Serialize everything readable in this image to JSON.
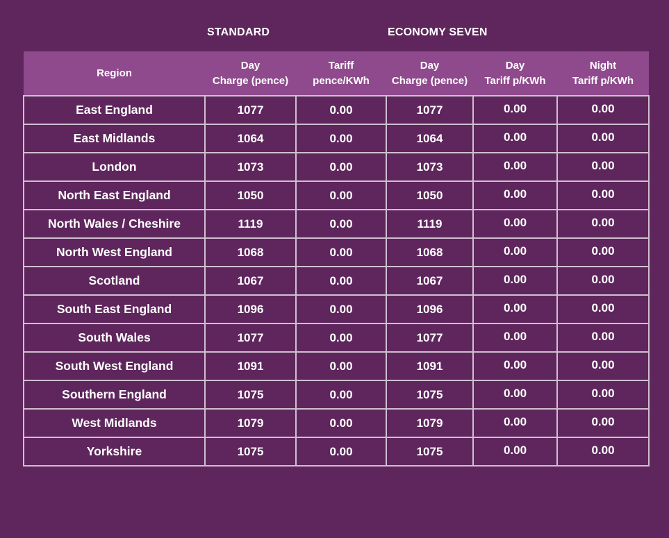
{
  "groups": {
    "standard": "STANDARD",
    "economy_seven": "ECONOMY SEVEN"
  },
  "headers": {
    "region": "Region",
    "std_day_line1": "Day",
    "std_day_line2": "Charge (pence)",
    "std_tariff_line1": "Tariff",
    "std_tariff_line2": "pence/KWh",
    "e7_day_line1": "Day",
    "e7_day_line2": "Charge (pence)",
    "e7_day_tariff_line1": "Day",
    "e7_day_tariff_line2": "Tariff p/KWh",
    "e7_night_tariff_line1": "Night",
    "e7_night_tariff_line2": "Tariff p/KWh"
  },
  "rows": [
    {
      "region": "East England",
      "std_day": "1077",
      "std_tariff": "0.00",
      "e7_day": "1077",
      "e7_day_tariff": "0.00",
      "e7_night_tariff": "0.00"
    },
    {
      "region": "East Midlands",
      "std_day": "1064",
      "std_tariff": "0.00",
      "e7_day": "1064",
      "e7_day_tariff": "0.00",
      "e7_night_tariff": "0.00"
    },
    {
      "region": "London",
      "std_day": "1073",
      "std_tariff": "0.00",
      "e7_day": "1073",
      "e7_day_tariff": "0.00",
      "e7_night_tariff": "0.00"
    },
    {
      "region": "North East England",
      "std_day": "1050",
      "std_tariff": "0.00",
      "e7_day": "1050",
      "e7_day_tariff": "0.00",
      "e7_night_tariff": "0.00"
    },
    {
      "region": "North Wales / Cheshire",
      "std_day": "1119",
      "std_tariff": "0.00",
      "e7_day": "1119",
      "e7_day_tariff": "0.00",
      "e7_night_tariff": "0.00"
    },
    {
      "region": "North West England",
      "std_day": "1068",
      "std_tariff": "0.00",
      "e7_day": "1068",
      "e7_day_tariff": "0.00",
      "e7_night_tariff": "0.00"
    },
    {
      "region": "Scotland",
      "std_day": "1067",
      "std_tariff": "0.00",
      "e7_day": "1067",
      "e7_day_tariff": "0.00",
      "e7_night_tariff": "0.00"
    },
    {
      "region": "South East England",
      "std_day": "1096",
      "std_tariff": "0.00",
      "e7_day": "1096",
      "e7_day_tariff": "0.00",
      "e7_night_tariff": "0.00"
    },
    {
      "region": "South Wales",
      "std_day": "1077",
      "std_tariff": "0.00",
      "e7_day": "1077",
      "e7_day_tariff": "0.00",
      "e7_night_tariff": "0.00"
    },
    {
      "region": "South West England",
      "std_day": "1091",
      "std_tariff": "0.00",
      "e7_day": "1091",
      "e7_day_tariff": "0.00",
      "e7_night_tariff": "0.00"
    },
    {
      "region": "Southern England",
      "std_day": "1075",
      "std_tariff": "0.00",
      "e7_day": "1075",
      "e7_day_tariff": "0.00",
      "e7_night_tariff": "0.00"
    },
    {
      "region": "West Midlands",
      "std_day": "1079",
      "std_tariff": "0.00",
      "e7_day": "1079",
      "e7_day_tariff": "0.00",
      "e7_night_tariff": "0.00"
    },
    {
      "region": "Yorkshire",
      "std_day": "1075",
      "std_tariff": "0.00",
      "e7_day": "1075",
      "e7_day_tariff": "0.00",
      "e7_night_tariff": "0.00"
    }
  ],
  "colors": {
    "background": "#5e265c",
    "header_band": "#8e4a8c",
    "grid_lines": "#cfc0cf",
    "text": "#ffffff"
  }
}
